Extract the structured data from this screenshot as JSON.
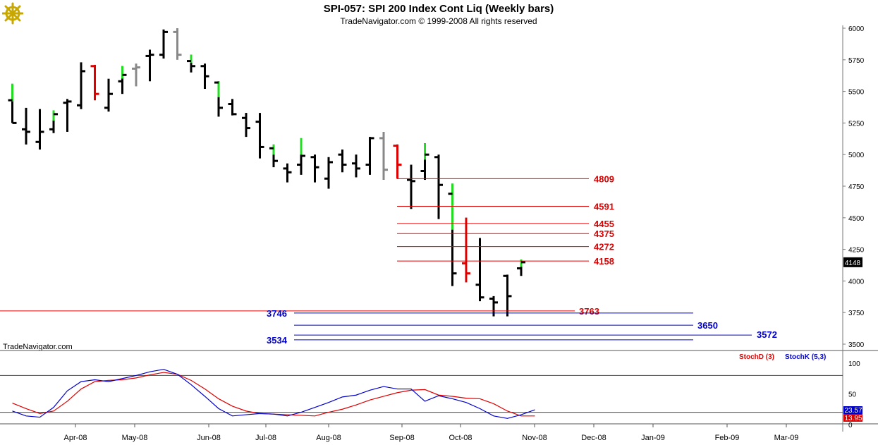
{
  "header": {
    "title": "SPI-057:  SPI 200 Index Cont Liq  (Weekly bars)",
    "copyright": "TradeNavigator.com © 1999-2008 All rights reserved"
  },
  "watermark": "TradeNavigator.com",
  "logo": {
    "icon": "ship-helm-icon"
  },
  "colors": {
    "up_bar": "#22dd22",
    "down_bar": "#dd0000",
    "neutral_bar": "#000000",
    "gray_bar": "#888888",
    "resistance": "#dd0000",
    "support": "#0000cc",
    "stoch_d": "#dd0000",
    "stoch_k": "#0000cc"
  },
  "price_labels": {
    "last_price": "4148"
  },
  "levels": {
    "red": [
      "4809",
      "4591",
      "4455",
      "4375",
      "4272",
      "4158",
      "3763"
    ],
    "blue": [
      "3746",
      "3650",
      "3572",
      "3534"
    ]
  },
  "chart_data": [
    {
      "type": "bar",
      "subtype": "ohlc",
      "x_labels": [
        "Apr-08",
        "May-08",
        "Jun-08",
        "Jul-08",
        "Aug-08",
        "Sep-08",
        "Oct-08",
        "Nov-08",
        "Dec-08",
        "Jan-09",
        "Feb-09",
        "Mar-09"
      ],
      "y_ticks": [
        3500,
        3750,
        4000,
        4250,
        4500,
        4750,
        5000,
        5250,
        5500,
        5750,
        6000
      ],
      "ylim": [
        3460,
        6020
      ],
      "grid": false,
      "series": [
        {
          "values": [
            {
              "o": 5430,
              "h": 5560,
              "l": 5250,
              "c": 5250,
              "color": "up"
            },
            {
              "o": 5200,
              "h": 5370,
              "l": 5080,
              "c": 5180,
              "color": "neutral"
            },
            {
              "o": 5100,
              "h": 5360,
              "l": 5040,
              "c": 5180,
              "color": "neutral"
            },
            {
              "o": 5200,
              "h": 5350,
              "l": 5170,
              "c": 5320,
              "color": "up"
            },
            {
              "o": 5410,
              "h": 5440,
              "l": 5180,
              "c": 5420,
              "color": "neutral"
            },
            {
              "o": 5390,
              "h": 5730,
              "l": 5360,
              "c": 5660,
              "color": "neutral"
            },
            {
              "o": 5700,
              "h": 5710,
              "l": 5430,
              "c": 5480,
              "color": "down"
            },
            {
              "o": 5370,
              "h": 5600,
              "l": 5340,
              "c": 5480,
              "color": "neutral"
            },
            {
              "o": 5580,
              "h": 5700,
              "l": 5480,
              "c": 5630,
              "color": "up"
            },
            {
              "o": 5680,
              "h": 5720,
              "l": 5540,
              "c": 5690,
              "color": "gray"
            },
            {
              "o": 5780,
              "h": 5830,
              "l": 5580,
              "c": 5790,
              "color": "neutral"
            },
            {
              "o": 5790,
              "h": 5990,
              "l": 5760,
              "c": 5970,
              "color": "neutral"
            },
            {
              "o": 5970,
              "h": 6000,
              "l": 5750,
              "c": 5790,
              "color": "gray"
            },
            {
              "o": 5740,
              "h": 5790,
              "l": 5650,
              "c": 5700,
              "color": "up"
            },
            {
              "o": 5700,
              "h": 5720,
              "l": 5520,
              "c": 5620,
              "color": "neutral"
            },
            {
              "o": 5570,
              "h": 5580,
              "l": 5300,
              "c": 5370,
              "color": "up"
            },
            {
              "o": 5400,
              "h": 5440,
              "l": 5310,
              "c": 5320,
              "color": "neutral"
            },
            {
              "o": 5290,
              "h": 5330,
              "l": 5140,
              "c": 5210,
              "color": "neutral"
            },
            {
              "o": 5260,
              "h": 5330,
              "l": 4970,
              "c": 5060,
              "color": "neutral"
            },
            {
              "o": 5050,
              "h": 5080,
              "l": 4900,
              "c": 4950,
              "color": "up"
            },
            {
              "o": 4890,
              "h": 4930,
              "l": 4780,
              "c": 4860,
              "color": "neutral"
            },
            {
              "o": 4920,
              "h": 5130,
              "l": 4840,
              "c": 4990,
              "color": "up"
            },
            {
              "o": 4980,
              "h": 5000,
              "l": 4780,
              "c": 4900,
              "color": "neutral"
            },
            {
              "o": 4810,
              "h": 4980,
              "l": 4730,
              "c": 4940,
              "color": "neutral"
            },
            {
              "o": 5000,
              "h": 5040,
              "l": 4860,
              "c": 4920,
              "color": "neutral"
            },
            {
              "o": 4930,
              "h": 5000,
              "l": 4820,
              "c": 4890,
              "color": "neutral"
            },
            {
              "o": 4920,
              "h": 5140,
              "l": 4840,
              "c": 5130,
              "color": "neutral"
            },
            {
              "o": 5130,
              "h": 5180,
              "l": 4800,
              "c": 4880,
              "color": "gray"
            },
            {
              "o": 5070,
              "h": 5080,
              "l": 4810,
              "c": 4920,
              "color": "down"
            },
            {
              "o": 4800,
              "h": 4920,
              "l": 4570,
              "c": 4790,
              "color": "neutral"
            },
            {
              "o": 4870,
              "h": 5090,
              "l": 4800,
              "c": 5000,
              "color": "up"
            },
            {
              "o": 4980,
              "h": 5000,
              "l": 4490,
              "c": 4760,
              "color": "neutral"
            },
            {
              "o": 4690,
              "h": 4770,
              "l": 3960,
              "c": 4060,
              "color": "up"
            },
            {
              "o": 4140,
              "h": 4500,
              "l": 3990,
              "c": 4060,
              "color": "down"
            },
            {
              "o": 3970,
              "h": 4340,
              "l": 3840,
              "c": 3870,
              "color": "neutral"
            },
            {
              "o": 3860,
              "h": 3880,
              "l": 3720,
              "c": 3830,
              "color": "neutral"
            },
            {
              "o": 4040,
              "h": 4050,
              "l": 3720,
              "c": 3880,
              "color": "neutral"
            },
            {
              "o": 4100,
              "h": 4170,
              "l": 4040,
              "c": 4148,
              "color": "up"
            }
          ]
        }
      ],
      "horizontal_levels": [
        4809,
        4591,
        4455,
        4375,
        4272,
        4158,
        3763,
        3746,
        3650,
        3572,
        3534
      ]
    },
    {
      "type": "line",
      "legend": [
        "StochD (3)",
        "StochK (5,3)"
      ],
      "y_ticks": [
        0,
        50,
        100
      ],
      "ylim": [
        -5,
        115
      ],
      "reference_lines": [
        20,
        80
      ],
      "last_values": {
        "StochK (5,3)": "23.57",
        "StochD (3)": "13.95"
      },
      "series": [
        {
          "name": "StochD (3)",
          "values": [
            35,
            26,
            18,
            22,
            38,
            58,
            70,
            72,
            73,
            76,
            81,
            85,
            82,
            72,
            58,
            42,
            30,
            22,
            18,
            17,
            16,
            15,
            14,
            20,
            25,
            32,
            40,
            46,
            52,
            56,
            57,
            48,
            46,
            43,
            42,
            34,
            22,
            14,
            14
          ]
        },
        {
          "name": "StochK (5,3)",
          "values": [
            22,
            14,
            12,
            28,
            55,
            70,
            73,
            70,
            75,
            80,
            86,
            90,
            82,
            65,
            46,
            26,
            14,
            16,
            18,
            17,
            14,
            20,
            28,
            36,
            45,
            48,
            56,
            62,
            58,
            58,
            38,
            47,
            42,
            36,
            26,
            14,
            10,
            16,
            24
          ]
        }
      ]
    }
  ]
}
